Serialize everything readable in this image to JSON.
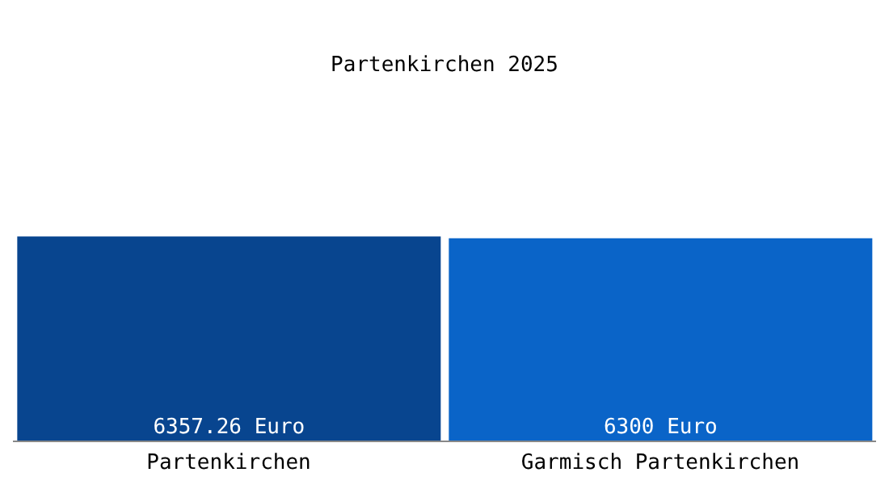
{
  "chart_data": {
    "type": "bar",
    "title": "Partenkirchen 2025",
    "categories": [
      "Partenkirchen",
      "Garmisch Partenkirchen"
    ],
    "values": [
      6357.26,
      6300
    ],
    "colors": [
      "#08458f",
      "#0a64c8"
    ],
    "value_labels": [
      "6357.26 Euro",
      "6300 Euro"
    ],
    "legend": false,
    "grid": false
  }
}
